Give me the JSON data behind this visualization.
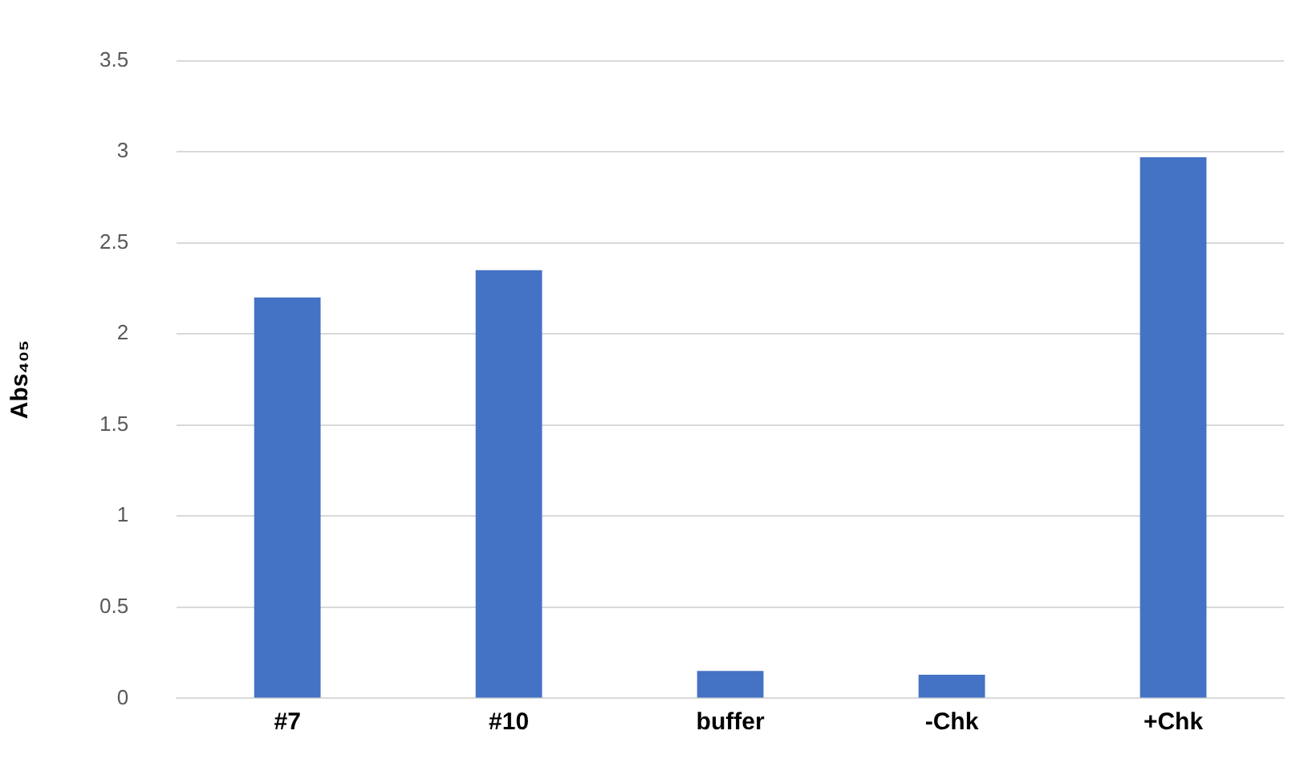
{
  "chart_data": {
    "type": "bar",
    "ylabel": "Abs₄₀₅",
    "categories": [
      "#7",
      "#10",
      "buffer",
      "-Chk",
      "+Chk"
    ],
    "values": [
      2.2,
      2.35,
      0.15,
      0.13,
      2.97
    ],
    "color": "#4472c4",
    "ylim": [
      0,
      3.5
    ],
    "yticks": [
      0,
      0.5,
      1,
      1.5,
      2,
      2.5,
      3,
      3.5
    ],
    "grid": "y",
    "legend": false
  }
}
